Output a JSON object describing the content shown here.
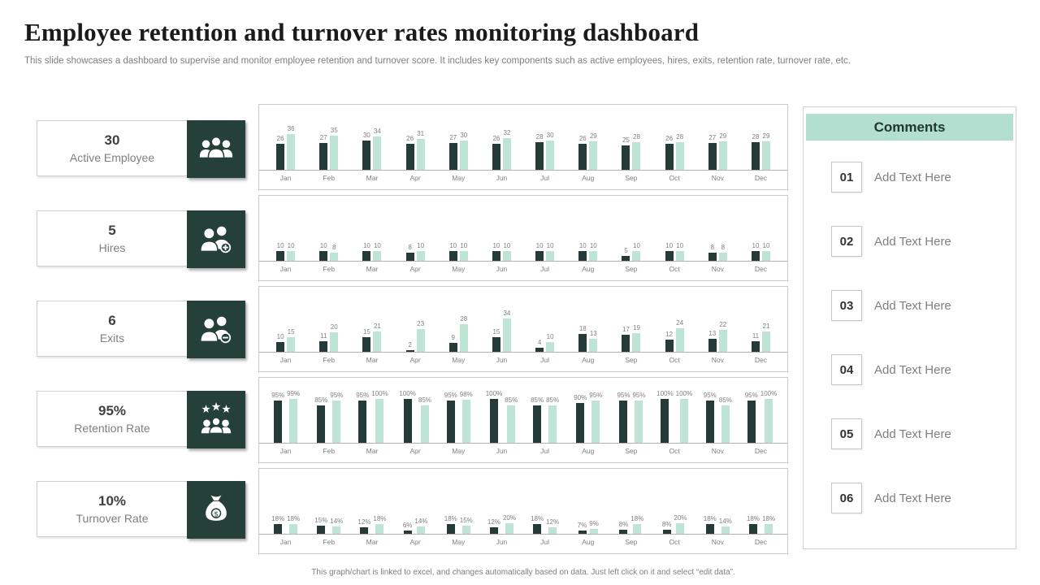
{
  "slide": {
    "title": "Employee retention and turnover rates monitoring dashboard",
    "subtitle": "This slide showcases a dashboard to supervise and monitor employee retention and turnover score. It includes key components such as active employees, hires, exits, retention rate, turnover rate, etc.",
    "footer": "This graph/chart is linked to excel, and changes automatically based on data. Just left click on it and select “edit data”."
  },
  "colors": {
    "dark_series": "#253B37",
    "light_series": "#BEE4D6",
    "icon_tile": "#254039",
    "comments_header_bg": "#B3DFD0",
    "comments_header_text": "#20372F"
  },
  "kpis": [
    {
      "value": "30",
      "label": "Active Employee",
      "icon": "team-icon"
    },
    {
      "value": "5",
      "label": "Hires",
      "icon": "person-add-icon"
    },
    {
      "value": "6",
      "label": "Exits",
      "icon": "person-remove-icon"
    },
    {
      "value": "95%",
      "label": "Retention Rate",
      "icon": "rating-team-icon"
    },
    {
      "value": "10%",
      "label": "Turnover Rate",
      "icon": "money-bag-icon"
    }
  ],
  "comments": {
    "title": "Comments",
    "items": [
      {
        "number": "01",
        "label": "Add Text Here"
      },
      {
        "number": "02",
        "label": "Add Text Here"
      },
      {
        "number": "03",
        "label": "Add Text Here"
      },
      {
        "number": "04",
        "label": "Add Text Here"
      },
      {
        "number": "05",
        "label": "Add Text Here"
      },
      {
        "number": "06",
        "label": "Add Text Here"
      }
    ]
  },
  "chart_data": [
    {
      "name": "active-employee-chart",
      "type": "bar",
      "legend": false,
      "grid": false,
      "categories": [
        "Jan",
        "Feb",
        "Mar",
        "Apr",
        "May",
        "Jun",
        "Jul",
        "Aug",
        "Sep",
        "Oct",
        "Nov",
        "Dec"
      ],
      "value_suffix": "",
      "ylim": [
        0,
        56
      ],
      "series": [
        {
          "name": "series-1",
          "color": "#253B37",
          "values": [
            26,
            27,
            30,
            26,
            27,
            26,
            28,
            26,
            25,
            26,
            27,
            28
          ]
        },
        {
          "name": "series-2",
          "color": "#BEE4D6",
          "values": [
            36,
            35,
            34,
            31,
            30,
            32,
            30,
            29,
            28,
            28,
            29,
            29
          ]
        }
      ]
    },
    {
      "name": "hires-chart",
      "type": "bar",
      "legend": false,
      "grid": false,
      "categories": [
        "Jan",
        "Feb",
        "Mar",
        "Apr",
        "May",
        "Jun",
        "Jul",
        "Aug",
        "Sep",
        "Oct",
        "Nov",
        "Dec"
      ],
      "value_suffix": "",
      "ylim": [
        0,
        56
      ],
      "series": [
        {
          "name": "series-1",
          "color": "#253B37",
          "values": [
            10,
            10,
            10,
            8,
            10,
            10,
            10,
            10,
            5,
            10,
            8,
            10
          ]
        },
        {
          "name": "series-2",
          "color": "#BEE4D6",
          "values": [
            10,
            8,
            10,
            10,
            10,
            10,
            10,
            10,
            10,
            10,
            8,
            10
          ]
        }
      ]
    },
    {
      "name": "exits-chart",
      "type": "bar",
      "legend": false,
      "grid": false,
      "categories": [
        "Jan",
        "Feb",
        "Mar",
        "Apr",
        "May",
        "Jun",
        "Jul",
        "Aug",
        "Sep",
        "Oct",
        "Nov",
        "Dec"
      ],
      "value_suffix": "",
      "ylim": [
        0,
        56
      ],
      "series": [
        {
          "name": "series-1",
          "color": "#253B37",
          "values": [
            10,
            11,
            15,
            2,
            9,
            15,
            4,
            18,
            17,
            12,
            13,
            11
          ]
        },
        {
          "name": "series-2",
          "color": "#BEE4D6",
          "values": [
            15,
            20,
            21,
            23,
            28,
            34,
            10,
            13,
            19,
            24,
            22,
            21
          ]
        }
      ]
    },
    {
      "name": "retention-rate-chart",
      "type": "bar",
      "legend": false,
      "grid": false,
      "categories": [
        "Jan",
        "Feb",
        "Mar",
        "Apr",
        "May",
        "Jun",
        "Jul",
        "Aug",
        "Sep",
        "Oct",
        "Nov",
        "Dec"
      ],
      "value_suffix": "%",
      "ylim": [
        0,
        125
      ],
      "series": [
        {
          "name": "series-1",
          "color": "#253B37",
          "values": [
            95,
            85,
            95,
            100,
            95,
            100,
            85,
            90,
            95,
            100,
            95,
            95
          ]
        },
        {
          "name": "series-2",
          "color": "#BEE4D6",
          "values": [
            99,
            95,
            100,
            85,
            98,
            85,
            85,
            95,
            95,
            100,
            85,
            100
          ]
        }
      ]
    },
    {
      "name": "turnover-rate-chart",
      "type": "bar",
      "legend": false,
      "grid": false,
      "categories": [
        "Jan",
        "Feb",
        "Mar",
        "Apr",
        "May",
        "Jun",
        "Jul",
        "Aug",
        "Sep",
        "Oct",
        "Nov",
        "Dec"
      ],
      "value_suffix": "%",
      "ylim": [
        0,
        105
      ],
      "series": [
        {
          "name": "series-1",
          "color": "#253B37",
          "values": [
            18,
            15,
            12,
            6,
            18,
            12,
            18,
            7,
            8,
            8,
            18,
            18
          ]
        },
        {
          "name": "series-2",
          "color": "#BEE4D6",
          "values": [
            18,
            14,
            18,
            14,
            15,
            20,
            12,
            9,
            18,
            20,
            14,
            18
          ]
        }
      ]
    }
  ]
}
